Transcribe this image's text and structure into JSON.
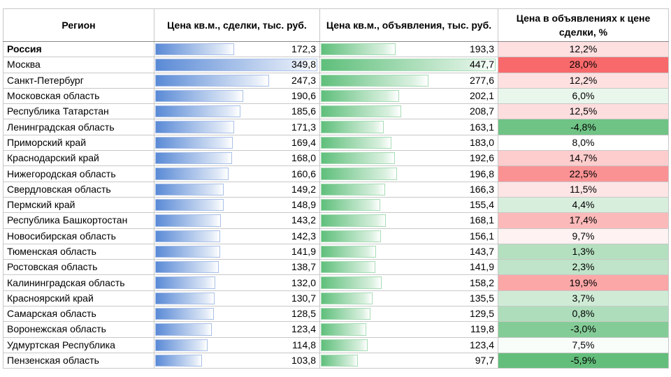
{
  "table": {
    "header": [
      "Регион",
      "Цена кв.м., сделки, тыс. руб.",
      "Цена кв.м., объявления, тыс. руб.",
      "Цена в объявлениях к цене сделки, %"
    ],
    "rows": [
      [
        "Россия",
        "172,3",
        "193,3",
        "12,2%"
      ],
      [
        "Москва",
        "349,8",
        "447,7",
        "28,0%"
      ],
      [
        "Санкт-Петербург",
        "247,3",
        "277,6",
        "12,2%"
      ],
      [
        "Московская область",
        "190,6",
        "202,1",
        "6,0%"
      ],
      [
        "Республика Татарстан",
        "185,6",
        "208,7",
        "12,5%"
      ],
      [
        "Ленинградская область",
        "171,3",
        "163,1",
        "-4,8%"
      ],
      [
        "Приморский край",
        "169,4",
        "183,0",
        "8,0%"
      ],
      [
        "Краснодарский край",
        "168,0",
        "192,6",
        "14,7%"
      ],
      [
        "Нижегородская область",
        "160,6",
        "196,8",
        "22,5%"
      ],
      [
        "Свердловская область",
        "149,2",
        "166,3",
        "11,5%"
      ],
      [
        "Пермский край",
        "148,9",
        "155,4",
        "4,4%"
      ],
      [
        "Республика Башкортостан",
        "143,2",
        "168,1",
        "17,4%"
      ],
      [
        "Новосибирская область",
        "142,3",
        "156,1",
        "9,7%"
      ],
      [
        "Тюменская область",
        "141,9",
        "143,7",
        "1,3%"
      ],
      [
        "Ростовская область",
        "138,7",
        "141,9",
        "2,3%"
      ],
      [
        "Калининградская область",
        "132,0",
        "158,2",
        "19,9%"
      ],
      [
        "Красноярский край",
        "130,7",
        "135,5",
        "3,7%"
      ],
      [
        "Самарская область",
        "128,5",
        "129,5",
        "0,8%"
      ],
      [
        "Воронежская область",
        "123,4",
        "119,8",
        "-3,0%"
      ],
      [
        "Удмуртская Республика",
        "114,8",
        "123,4",
        "7,5%"
      ],
      [
        "Пензенская область",
        "103,8",
        "97,7",
        "-5,9%"
      ]
    ]
  }
}
